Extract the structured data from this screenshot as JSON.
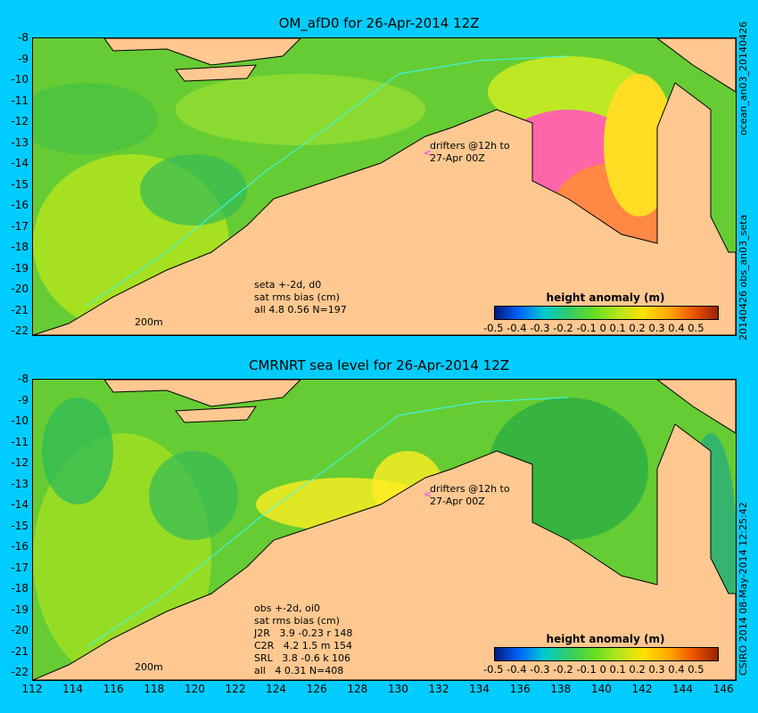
{
  "top": {
    "title": "OM_afD0 for 26-Apr-2014 12Z",
    "side_right": "ocean_an03_20140426",
    "side_right2": "20140426 obs_an03_seta",
    "drifters": [
      "drifters @12h to",
      "27-Apr 00Z"
    ],
    "stats": [
      "seta +-2d, d0",
      "sat rms bias (cm)",
      "all 4.8 0.56 N=197"
    ],
    "isobath": "200m",
    "colorbar_title": "height anomaly (m)",
    "colorbar_ticks": "-0.5 -0.4 -0.3 -0.2 -0.1   0   0.1  0.2  0.3  0.4  0.5"
  },
  "bottom": {
    "title": "CMRNRT sea level  for 26-Apr-2014 12Z",
    "side_right": "CSIRO 2014  08-May-2014 12:25:42",
    "drifters": [
      "drifters @12h to",
      "27-Apr 00Z"
    ],
    "stats": [
      "obs +-2d, oi0",
      "sat rms bias (cm)",
      "J2R   3.9 -0.23 r 148",
      "C2R   4.2 1.5 m 154",
      "SRL   3.8 -0.6 k 106",
      "all   4 0.31 N=408"
    ],
    "isobath": "200m",
    "colorbar_title": "height anomaly (m)",
    "colorbar_ticks": "-0.5 -0.4 -0.3 -0.2 -0.1   0   0.1  0.2  0.3  0.4  0.5"
  },
  "y_ticks": [
    "-8",
    "-9",
    "-10",
    "-11",
    "-12",
    "-13",
    "-14",
    "-15",
    "-16",
    "-17",
    "-18",
    "-19",
    "-20",
    "-21",
    "-22"
  ],
  "x_ticks": [
    "112",
    "114",
    "116",
    "118",
    "120",
    "122",
    "124",
    "126",
    "128",
    "130",
    "132",
    "134",
    "136",
    "138",
    "140",
    "142",
    "144",
    "146"
  ],
  "colors": {
    "background": "#00ccff",
    "land": "#ffc890",
    "ocean_base": "#66dd22",
    "anomaly_high": "#ff33aa",
    "vectors": "#cc44ff"
  }
}
